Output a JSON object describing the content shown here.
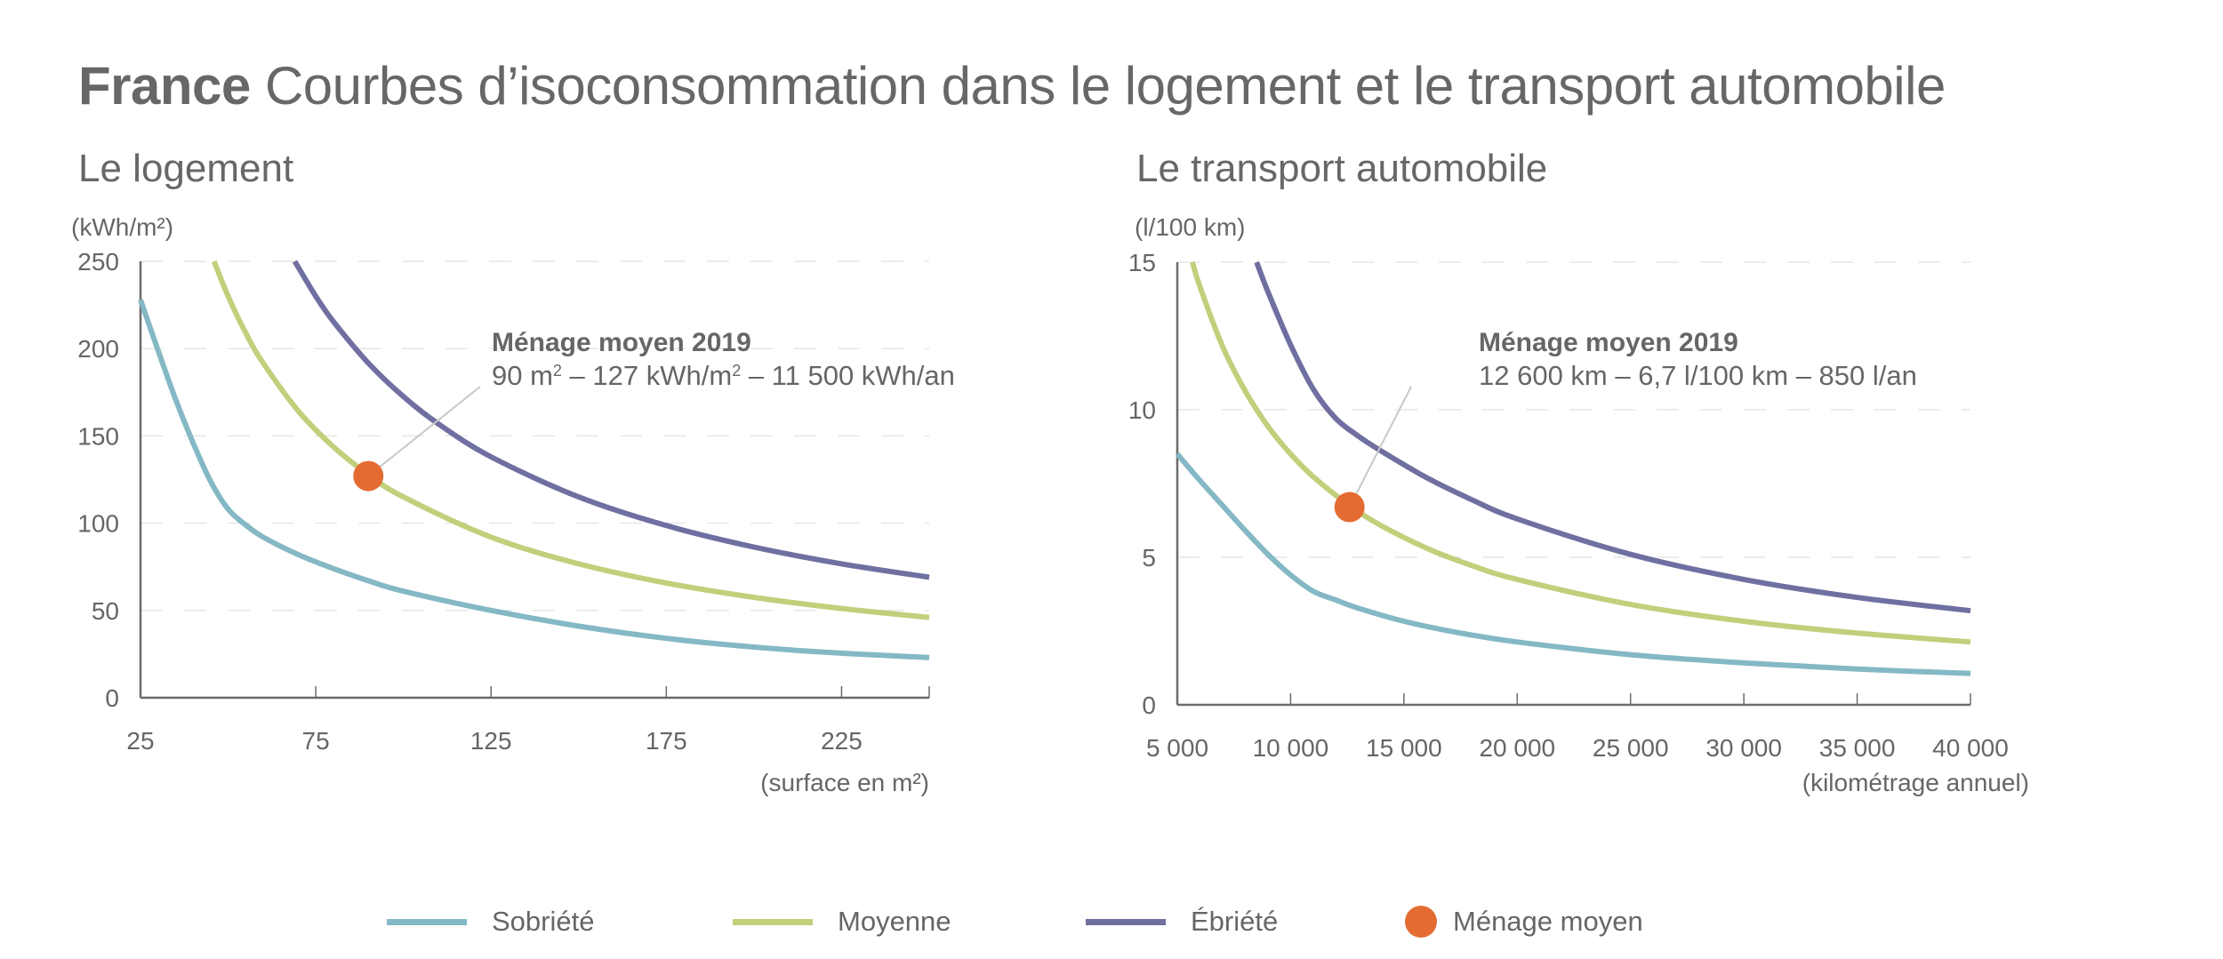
{
  "title": {
    "bold": "France",
    "rest": "Courbes d’isoconsommation dans le logement et le transport automobile"
  },
  "colors": {
    "text": "#666666",
    "axis": "#6b6b6b",
    "grid": "#e6e6e6",
    "leader": "#c8c8c8",
    "sobriete": "#84b8c4",
    "moyenne": "#c2cf7b",
    "ebriete": "#6f6fa1",
    "menage": "#e46c33"
  },
  "legend": [
    {
      "key": "sobriete",
      "label": "Sobriété",
      "type": "line"
    },
    {
      "key": "moyenne",
      "label": "Moyenne",
      "type": "line"
    },
    {
      "key": "ebriete",
      "label": "Ébriété",
      "type": "line"
    },
    {
      "key": "menage",
      "label": "Ménage moyen",
      "type": "dot"
    }
  ],
  "chart_data": [
    {
      "id": "logement",
      "type": "line",
      "title": "Le logement",
      "ylabel": "(kWh/m²)",
      "xlabel": "(surface en m²)",
      "xlim": [
        25,
        250
      ],
      "ylim": [
        0,
        250
      ],
      "xticks": [
        25,
        75,
        125,
        175,
        225
      ],
      "xtick_labels": [
        "25",
        "75",
        "125",
        "175",
        "225"
      ],
      "yticks": [
        0,
        50,
        100,
        150,
        200,
        250
      ],
      "ytick_labels": [
        "0",
        "50",
        "100",
        "150",
        "200",
        "250"
      ],
      "grid": "horizontal-dashed",
      "series": [
        {
          "name": "Sobriété",
          "key": "sobriete",
          "x": [
            25,
            30,
            35,
            40,
            45,
            50,
            55,
            60,
            70,
            80,
            90,
            100,
            125,
            150,
            175,
            200,
            225,
            250
          ],
          "y": [
            228,
            199,
            171,
            146,
            124,
            108,
            99,
            92,
            82,
            74,
            67,
            61,
            50,
            41,
            34,
            29,
            25.5,
            23
          ]
        },
        {
          "name": "Moyenne",
          "key": "moyenne",
          "x": [
            46,
            50,
            55,
            60,
            70,
            80,
            90,
            100,
            125,
            150,
            175,
            200,
            225,
            250
          ],
          "y": [
            250,
            230,
            209,
            191.7,
            164.3,
            143.8,
            127.8,
            115,
            92,
            76.7,
            65.7,
            57.5,
            51.1,
            46
          ]
        },
        {
          "name": "Ébriété",
          "key": "ebriete",
          "x": [
            69,
            75,
            80,
            90,
            100,
            110,
            125,
            150,
            175,
            200,
            225,
            250
          ],
          "y": [
            250,
            230,
            215.6,
            191.7,
            172.5,
            156.8,
            138,
            115,
            98.6,
            86.3,
            76.7,
            69
          ]
        }
      ],
      "point": {
        "name": "Ménage moyen",
        "x": 90,
        "y": 127
      },
      "annotation": {
        "title": "Ménage moyen 2019",
        "text_parts": [
          "90 m",
          "2",
          " – 127 kWh/m",
          "2",
          " – 11 500 kWh/an"
        ]
      }
    },
    {
      "id": "transport",
      "type": "line",
      "title": "Le transport automobile",
      "ylabel": "(l/100 km)",
      "xlabel": "(kilométrage annuel)",
      "xlim": [
        5000,
        40000
      ],
      "ylim": [
        0,
        15
      ],
      "xticks": [
        5000,
        10000,
        15000,
        20000,
        25000,
        30000,
        35000,
        40000
      ],
      "xtick_labels": [
        "5 000",
        "10 000",
        "15 000",
        "20 000",
        "25 000",
        "30 000",
        "35 000",
        "40 000"
      ],
      "yticks": [
        0,
        5,
        10,
        15
      ],
      "ytick_labels": [
        "0",
        "5",
        "10",
        "15"
      ],
      "grid": "horizontal-dashed",
      "series": [
        {
          "name": "Sobriété",
          "key": "sobriete",
          "x": [
            5000,
            6000,
            7000,
            8000,
            9000,
            10000,
            11000,
            12000,
            13000,
            15000,
            17500,
            20000,
            25000,
            30000,
            35000,
            40000
          ],
          "y": [
            8.5,
            7.6,
            6.75,
            5.9,
            5.1,
            4.4,
            3.85,
            3.55,
            3.27,
            2.83,
            2.43,
            2.13,
            1.7,
            1.42,
            1.21,
            1.06
          ]
        },
        {
          "name": "Moyenne",
          "key": "moyenne",
          "x": [
            5667,
            6000,
            7000,
            8000,
            9000,
            10000,
            11000,
            12600,
            14000,
            16000,
            18000,
            20000,
            25000,
            30000,
            35000,
            40000
          ],
          "y": [
            15,
            14.17,
            12.14,
            10.63,
            9.44,
            8.5,
            7.73,
            6.75,
            6.07,
            5.31,
            4.72,
            4.25,
            3.4,
            2.83,
            2.43,
            2.13
          ]
        },
        {
          "name": "Ébriété",
          "key": "ebriete",
          "x": [
            8500,
            9000,
            10000,
            11000,
            12000,
            13000,
            14000,
            16000,
            18000,
            20000,
            25000,
            30000,
            35000,
            40000
          ],
          "y": [
            15,
            14.0,
            12.2,
            10.7,
            9.7,
            9.1,
            8.6,
            7.7,
            6.95,
            6.3,
            5.1,
            4.25,
            3.64,
            3.19
          ]
        }
      ],
      "point": {
        "name": "Ménage moyen",
        "x": 12600,
        "y": 6.7
      },
      "annotation": {
        "title": "Ménage moyen 2019",
        "text_parts": [
          "12 600 km – 6,7 l/100 km – 850 l/an"
        ]
      }
    }
  ]
}
